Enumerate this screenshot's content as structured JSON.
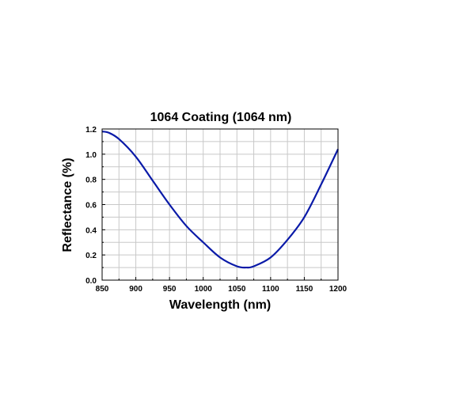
{
  "chart_data": {
    "type": "line",
    "title": "1064 Coating (1064 nm)",
    "xlabel": "Wavelength (nm)",
    "ylabel": "Reflectance (%)",
    "xlim": [
      850,
      1200
    ],
    "ylim": [
      0,
      1.2
    ],
    "x_ticks": [
      "850",
      "900",
      "950",
      "1000",
      "1050",
      "1100",
      "1150",
      "1200"
    ],
    "y_ticks": [
      "0.0",
      "0.2",
      "0.4",
      "0.6",
      "0.8",
      "1.0",
      "1.2"
    ],
    "grid": true,
    "series_color": "#0a1aa8",
    "series": [
      {
        "x": [
          850,
          860,
          875,
          900,
          925,
          950,
          975,
          1000,
          1025,
          1050,
          1064,
          1075,
          1100,
          1125,
          1150,
          1175,
          1200
        ],
        "y": [
          1.18,
          1.17,
          1.12,
          0.98,
          0.79,
          0.6,
          0.43,
          0.3,
          0.18,
          0.11,
          0.1,
          0.11,
          0.18,
          0.32,
          0.5,
          0.76,
          1.04
        ]
      }
    ]
  }
}
